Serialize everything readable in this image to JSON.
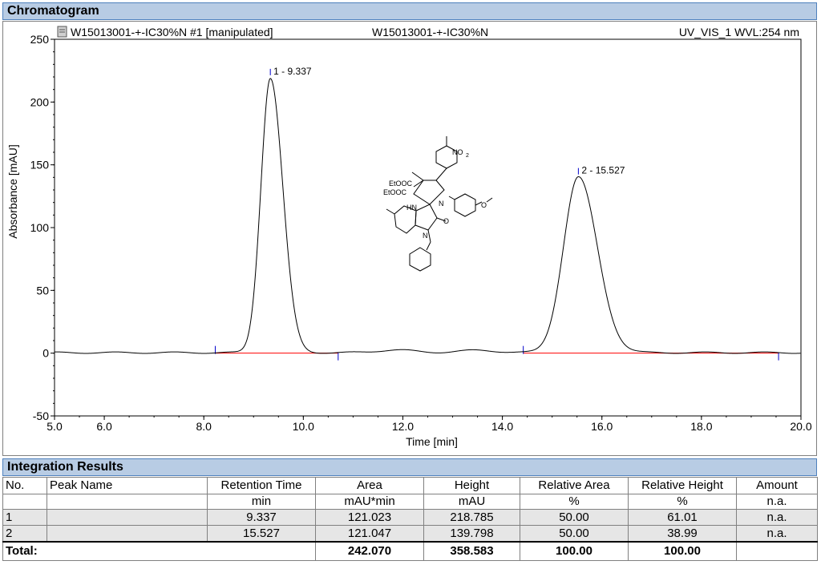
{
  "sections": {
    "chromatogram_title": "Chromatogram",
    "integration_title": "Integration Results"
  },
  "chart_header": {
    "left": "W15013001-+-IC30%N #1 [manipulated]",
    "center": "W15013001-+-IC30%N",
    "right": "UV_VIS_1 WVL:254 nm",
    "icon": "document-icon"
  },
  "structure_labels": {
    "no2": "NO",
    "no2_sub": "2",
    "etooc1": "EtOOC",
    "etooc2": "EtOOC",
    "hn": "HN",
    "n1": "N",
    "n2": "N",
    "o": "O"
  },
  "chart_data": {
    "type": "line",
    "xlabel": "Time [min]",
    "ylabel": "Absorbance [mAU]",
    "xlim": [
      5.0,
      20.0
    ],
    "ylim": [
      -50,
      250
    ],
    "x_ticks": [
      5.0,
      6.0,
      8.0,
      10.0,
      12.0,
      14.0,
      16.0,
      18.0,
      20.0
    ],
    "x_tick_labels": [
      "5.0",
      "6.0",
      "8.0",
      "10.0",
      "12.0",
      "14.0",
      "16.0",
      "18.0",
      "20.0"
    ],
    "y_ticks": [
      -50,
      0,
      50,
      100,
      150,
      200,
      250
    ],
    "y_tick_labels": [
      "-50",
      "0",
      "50",
      "100",
      "150",
      "200",
      "250"
    ],
    "trace_color": "#000000",
    "baseline_color": "#ff0000",
    "marker_color": "#0000cc",
    "peaks": [
      {
        "label": "1 - 9.337",
        "rt": 9.337,
        "height": 218.785
      },
      {
        "label": "2 - 15.527",
        "rt": 15.527,
        "height": 139.798
      }
    ],
    "baselines": [
      {
        "start": 8.23,
        "end": 10.7
      },
      {
        "start": 14.42,
        "end": 19.55
      }
    ]
  },
  "table": {
    "headers": [
      "No.",
      "Peak Name",
      "Retention Time",
      "Area",
      "Height",
      "Relative Area",
      "Relative Height",
      "Amount"
    ],
    "units": [
      "",
      "",
      "min",
      "mAU*min",
      "mAU",
      "%",
      "%",
      "n.a."
    ],
    "rows": [
      [
        "1",
        "",
        "9.337",
        "121.023",
        "218.785",
        "50.00",
        "61.01",
        "n.a."
      ],
      [
        "2",
        "",
        "15.527",
        "121.047",
        "139.798",
        "50.00",
        "38.99",
        "n.a."
      ]
    ],
    "total": [
      "Total:",
      "",
      "",
      "242.070",
      "358.583",
      "100.00",
      "100.00",
      ""
    ]
  }
}
